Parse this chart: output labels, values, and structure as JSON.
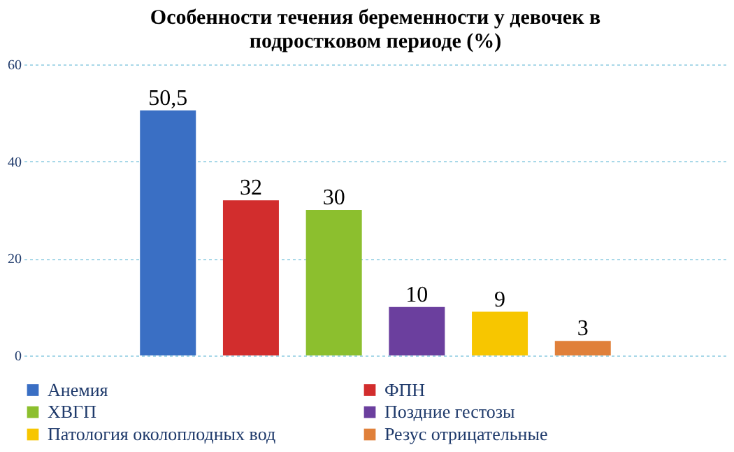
{
  "chart_data": {
    "type": "bar",
    "title": "Особенности течения беременности у девочек в подростковом периоде (%)",
    "categories": [
      null
    ],
    "series": [
      {
        "name": "Анемия",
        "color": "#3a6fc4",
        "values": [
          50.5
        ],
        "value_labels": [
          "50,5"
        ]
      },
      {
        "name": "ФПН",
        "color": "#d22d2d",
        "values": [
          32
        ],
        "value_labels": [
          "32"
        ]
      },
      {
        "name": "ХВГП",
        "color": "#8cbf2e",
        "values": [
          30
        ],
        "value_labels": [
          "30"
        ]
      },
      {
        "name": "Поздние гестозы",
        "color": "#6b3f9e",
        "values": [
          10
        ],
        "value_labels": [
          "10"
        ]
      },
      {
        "name": "Патология околоплодных вод",
        "color": "#f7c600",
        "values": [
          9
        ],
        "value_labels": [
          "9"
        ]
      },
      {
        "name": "Резус отрицательные",
        "color": "#e0803a",
        "values": [
          3
        ],
        "value_labels": [
          "3"
        ]
      }
    ],
    "ylim": [
      0,
      60
    ],
    "yticks": [
      0,
      20,
      40,
      60
    ],
    "grid": "y",
    "legend": "bottom",
    "tick_labels": "y"
  }
}
